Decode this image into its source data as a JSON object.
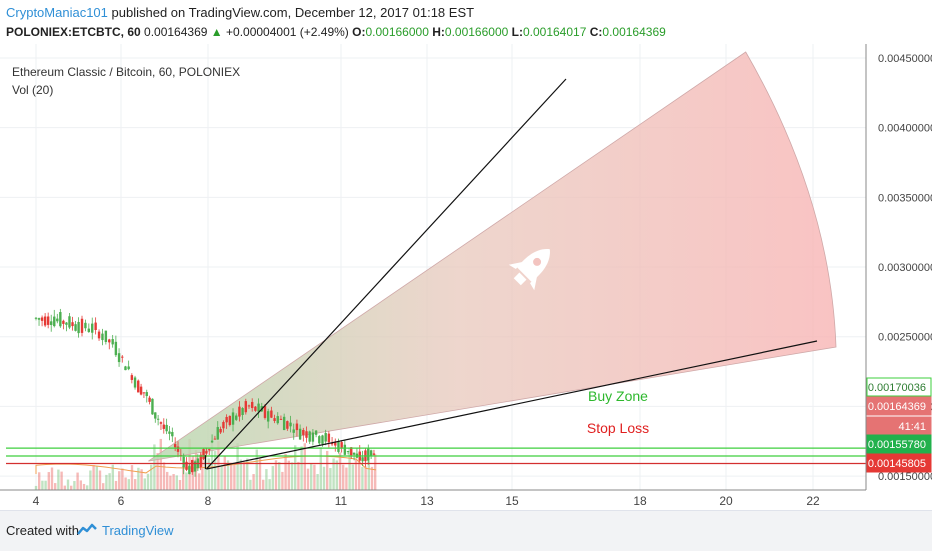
{
  "header": {
    "author": "CryptoManiac101",
    "published_text": "published on TradingView.com, December 12, 2017 01:18 EST",
    "symbol": "POLONIEX:ETCBTC, 60",
    "last_price": "0.00164369",
    "change": "+0.00004001 (+2.49%)",
    "open_label": "O:",
    "open": "0.00166000",
    "high_label": "H:",
    "high": "0.00166000",
    "low_label": "L:",
    "low": "0.00164017",
    "close_label": "C:",
    "close": "0.00164369"
  },
  "chart_data": {
    "type": "candlestick",
    "title": "Ethereum Classic / Bitcoin, 60, POLONIEX",
    "indicator": "Vol (20)",
    "x_tick_labels": [
      "4",
      "6",
      "8",
      "11",
      "13",
      "15",
      "18",
      "20",
      "22"
    ],
    "y_tick_labels": [
      "0.00450000",
      "0.00400000",
      "0.00350000",
      "0.00300000",
      "0.00250000",
      "0.00200000",
      "0.00150000"
    ],
    "ylim": [
      0.0014,
      0.0046
    ],
    "price_path": [
      [
        4.0,
        0.00263
      ],
      [
        4.5,
        0.00262
      ],
      [
        5.0,
        0.00258
      ],
      [
        5.4,
        0.00255
      ],
      [
        5.8,
        0.00245
      ],
      [
        6.1,
        0.0023
      ],
      [
        6.4,
        0.00215
      ],
      [
        6.6,
        0.00208
      ],
      [
        6.8,
        0.00195
      ],
      [
        7.0,
        0.00185
      ],
      [
        7.2,
        0.00178
      ],
      [
        7.4,
        0.00165
      ],
      [
        7.6,
        0.00155
      ],
      [
        7.8,
        0.00158
      ],
      [
        8.0,
        0.00168
      ],
      [
        8.2,
        0.00178
      ],
      [
        8.4,
        0.00186
      ],
      [
        8.7,
        0.00193
      ],
      [
        9.0,
        0.002
      ],
      [
        9.3,
        0.00197
      ],
      [
        9.6,
        0.00192
      ],
      [
        9.9,
        0.00188
      ],
      [
        10.2,
        0.00182
      ],
      [
        10.5,
        0.0018
      ],
      [
        10.8,
        0.00177
      ],
      [
        11.1,
        0.00172
      ],
      [
        11.4,
        0.00168
      ],
      [
        11.6,
        0.00162
      ],
      [
        11.8,
        0.00165
      ],
      [
        12.0,
        0.00169
      ]
    ],
    "horizontal_levels": [
      {
        "name": "Buy Zone",
        "upper": 0.00170036,
        "lower": 0.00164369,
        "color": "#3ecf3e"
      },
      {
        "name": "Stop Loss",
        "value": 0.00159,
        "color": "#d32f2f"
      }
    ],
    "price_labels": [
      {
        "value": "0.00170036",
        "color": "#2e7d32",
        "bg": "#ffffff"
      },
      {
        "value": "0.00164369",
        "color": "#ffffff",
        "bg": "#e57373"
      },
      {
        "value": "41:41",
        "color": "#ffffff",
        "bg": "#e57373"
      },
      {
        "value": "0.00155780",
        "color": "#ffffff",
        "bg": "#22b14c"
      },
      {
        "value": "0.00145805",
        "color": "#ffffff",
        "bg": "#e53935"
      }
    ],
    "trend_lines": [
      {
        "from": [
          8.0,
          0.00155
        ],
        "to": [
          16.2,
          0.0044
        ]
      },
      {
        "from": [
          8.0,
          0.00155
        ],
        "to": [
          22.0,
          0.00212
        ]
      }
    ],
    "annotations": [
      "Buy Zone",
      "Stop Loss"
    ],
    "grid": true
  },
  "footer": {
    "created_with": "Created with",
    "brand": "TradingView"
  },
  "icons": {
    "rocket": "rocket-icon",
    "logo": "tradingview-logo-icon"
  }
}
